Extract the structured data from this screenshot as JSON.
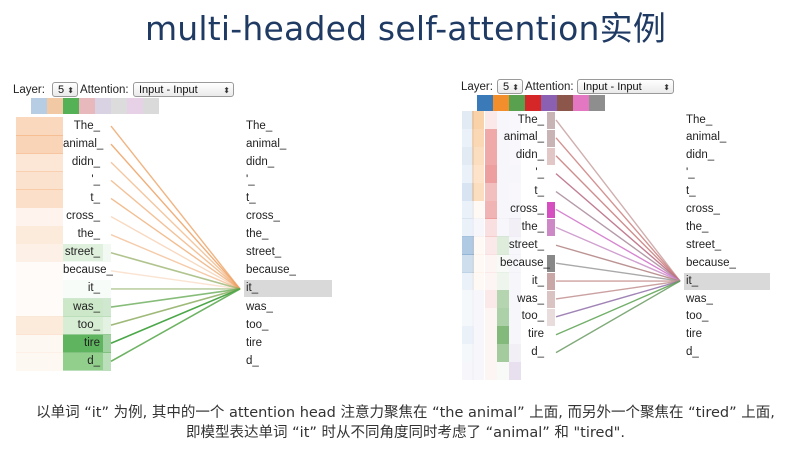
{
  "title": "multi-headed self-attention实例",
  "tokens": [
    "The_",
    "animal_",
    "didn_",
    "'_",
    "t_",
    "cross_",
    "the_",
    "street_",
    "because_",
    "it_",
    "was_",
    "too_",
    "tire",
    "d_"
  ],
  "selected_token": "it_",
  "left_view": {
    "layer_label": "Layer:",
    "layer_value": "5",
    "attention_label": "Attention:",
    "attention_value": "Input - Input",
    "head_colors": [
      "#b7cde4",
      "#f2c9a5",
      "#55b155",
      "#e7b9bd",
      "#d9d2e3",
      "#dcdcdc",
      "#e6d1e6",
      "#dadada"
    ],
    "left_labels_highlight": {
      "street_": "#dff0dc",
      "was_": "#cce8c8",
      "too_": "#d8eed4",
      "tire": "#5fb55f",
      "d_": "#92cf8c"
    },
    "attention_weights_orange": [
      0.55,
      0.6,
      0.35,
      0.4,
      0.45,
      0.15,
      0.3,
      0.2,
      0.05,
      0.05,
      0.05,
      0.3,
      0.1,
      0.1
    ],
    "attention_weights_green": [
      0,
      0,
      0,
      0,
      0,
      0,
      0,
      0.1,
      0,
      0.05,
      0.35,
      0.2,
      0.7,
      0.5
    ]
  },
  "right_view": {
    "layer_label": "Layer:",
    "layer_value": "5",
    "attention_label": "Attention:",
    "attention_value": "Input - Input",
    "head_colors": [
      "#3a7ab8",
      "#f28e2b",
      "#59a14f",
      "#d62728",
      "#8b5fb1",
      "#8c564b",
      "#e377c2",
      "#8e8e8e"
    ]
  },
  "caption": [
    "以单词 “it” 为例, 其中的一个 attention head 注意力聚焦在 “the animal” 上面, 而另外一个聚焦在 “tired” 上面,",
    "即模型表达单词 “it” 时从不同角度同时考虑了 “animal” 和 \"tired\"."
  ]
}
